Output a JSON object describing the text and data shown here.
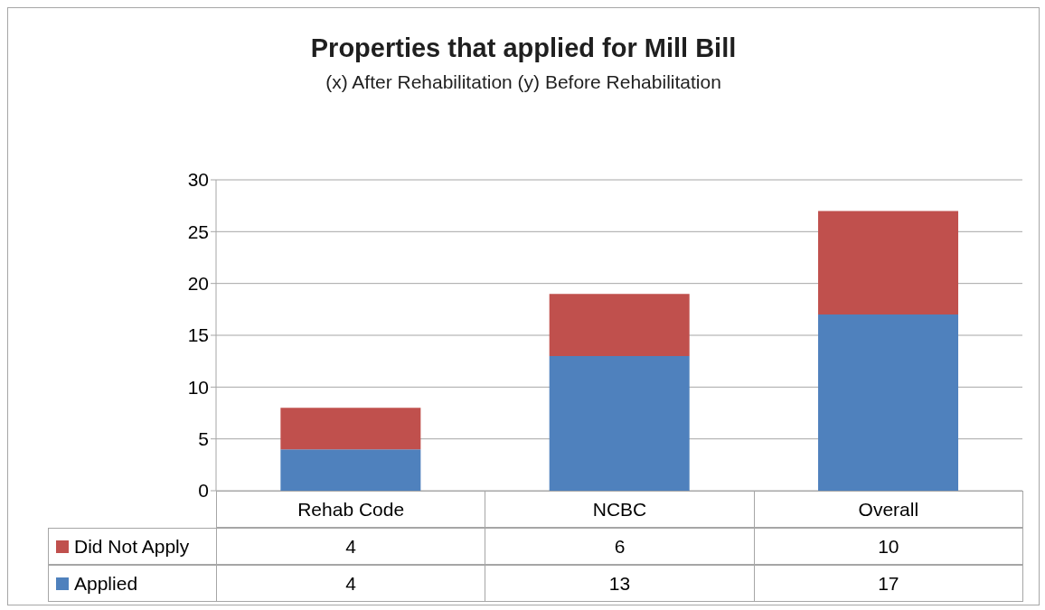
{
  "chart_data": {
    "type": "bar",
    "title": "Properties that applied for Mill Bill",
    "subtitle": "(x) After Rehabilitation (y) Before Rehabilitation",
    "categories": [
      "Rehab Code",
      "NCBC",
      "Overall"
    ],
    "stacked": true,
    "series": [
      {
        "name": "Applied",
        "color": "#4f81bd",
        "values": [
          4,
          13,
          17
        ]
      },
      {
        "name": "Did Not Apply",
        "color": "#c0504d",
        "values": [
          4,
          6,
          10
        ]
      }
    ],
    "ylim": [
      0,
      30
    ],
    "yticks": [
      0,
      5,
      10,
      15,
      20,
      25,
      30
    ],
    "grid": "y",
    "legend": "bottom",
    "data_labels": true
  }
}
